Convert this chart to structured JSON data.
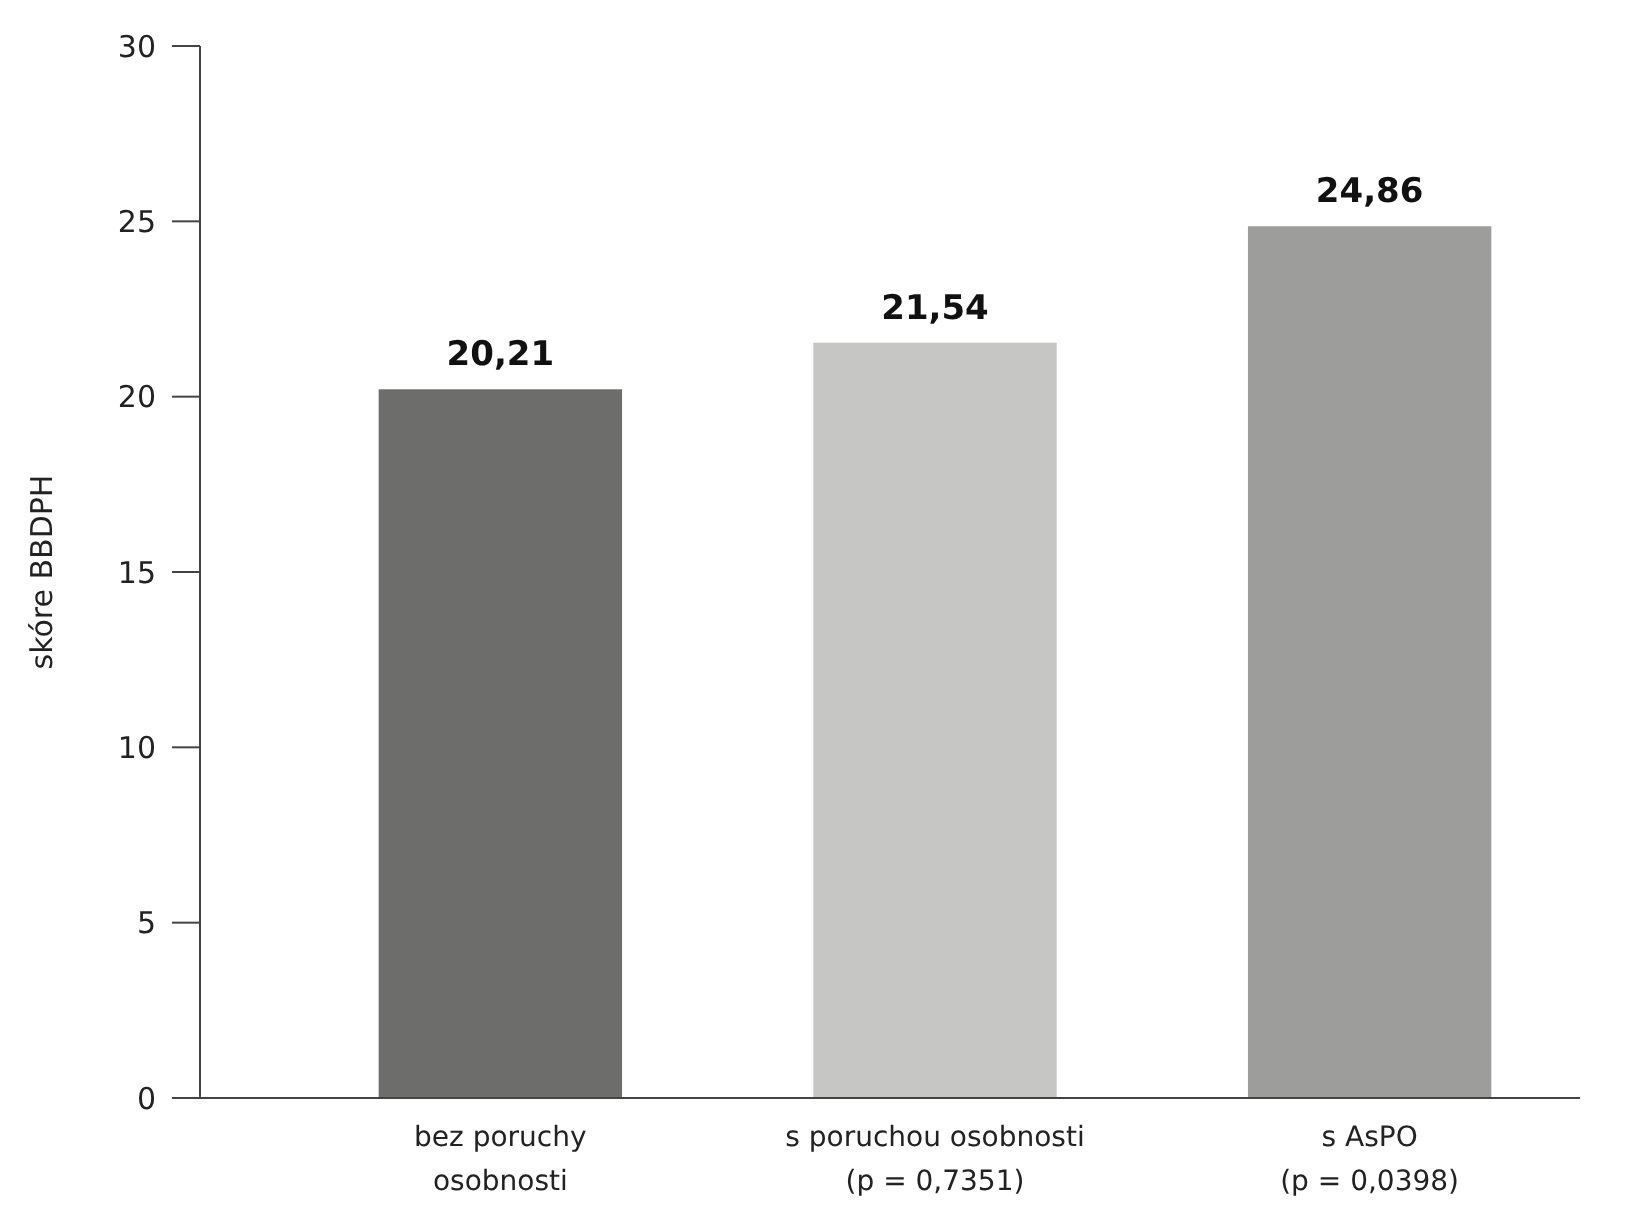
{
  "chart_data": {
    "type": "bar",
    "ylabel": "skóre BBDPH",
    "categories": [
      "bez poruchy\nosobnosti",
      "s poruchou osobnosti\n(p = 0,7351)",
      "s AsPO\n(p = 0,0398)"
    ],
    "values": [
      20.21,
      21.54,
      24.86
    ],
    "value_labels": [
      "20,21",
      "21,54",
      "24,86"
    ],
    "colors": [
      "#6d6e6c",
      "#c6c7c5",
      "#9d9e9c"
    ],
    "ylim": [
      0,
      30
    ],
    "yticks": [
      0,
      5,
      10,
      15,
      20,
      25,
      30
    ],
    "grid": false
  }
}
